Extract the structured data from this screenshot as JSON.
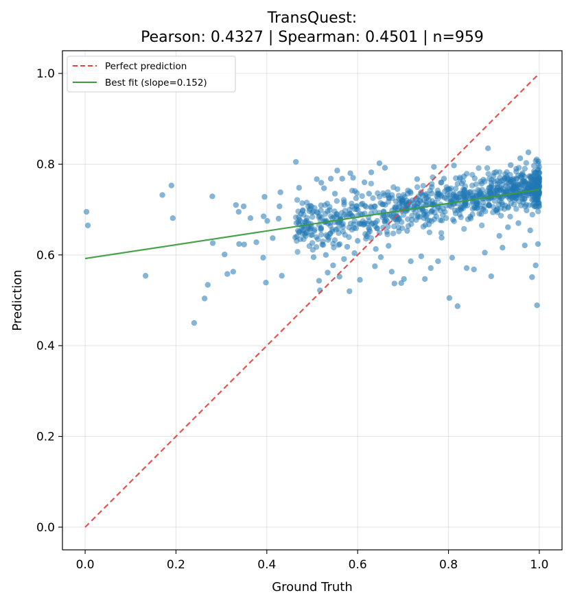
{
  "chart_data": {
    "type": "scatter",
    "title_line1": "TransQuest:",
    "title_line2": "Pearson: 0.4327 | Spearman: 0.4501 | n=959",
    "xlabel": "Ground Truth",
    "ylabel": "Prediction",
    "xlim": [
      -0.05,
      1.05
    ],
    "ylim": [
      -0.05,
      1.05
    ],
    "xticks": [
      0.0,
      0.2,
      0.4,
      0.6,
      0.8,
      1.0
    ],
    "yticks": [
      0.0,
      0.2,
      0.4,
      0.6,
      0.8,
      1.0
    ],
    "xtick_labels": [
      "0.0",
      "0.2",
      "0.4",
      "0.6",
      "0.8",
      "1.0"
    ],
    "ytick_labels": [
      "0.0",
      "0.2",
      "0.4",
      "0.6",
      "0.8",
      "1.0"
    ],
    "grid": true,
    "legend_position": "upper-left",
    "n_points": 959,
    "point_color": "#1f77b4",
    "series": [
      {
        "name": "Perfect prediction",
        "kind": "line",
        "style": "dashed",
        "color": "#e8413f",
        "x": [
          0,
          1
        ],
        "y": [
          0,
          1
        ]
      },
      {
        "name": "Best fit (slope=0.152)",
        "kind": "line",
        "style": "solid",
        "color": "#3a9a3a",
        "x": [
          0,
          1
        ],
        "y": [
          0.592,
          0.744
        ]
      }
    ],
    "points": [
      [
        0.003,
        0.695
      ],
      [
        0.006,
        0.665
      ],
      [
        0.133,
        0.554
      ],
      [
        0.17,
        0.732
      ],
      [
        0.19,
        0.753
      ],
      [
        0.193,
        0.681
      ],
      [
        0.24,
        0.45
      ],
      [
        0.263,
        0.504
      ],
      [
        0.27,
        0.534
      ],
      [
        0.28,
        0.729
      ],
      [
        0.281,
        0.626
      ],
      [
        0.307,
        0.601
      ],
      [
        0.313,
        0.558
      ],
      [
        0.326,
        0.563
      ],
      [
        0.332,
        0.71
      ],
      [
        0.338,
        0.695
      ],
      [
        0.339,
        0.624
      ],
      [
        0.349,
        0.707
      ],
      [
        0.35,
        0.623
      ],
      [
        0.364,
        0.681
      ],
      [
        0.377,
        0.628
      ],
      [
        0.392,
        0.594
      ],
      [
        0.393,
        0.685
      ],
      [
        0.395,
        0.728
      ],
      [
        0.398,
        0.539
      ],
      [
        0.401,
        0.675
      ],
      [
        0.413,
        0.637
      ],
      [
        0.426,
        0.68
      ],
      [
        0.428,
        0.707
      ],
      [
        0.43,
        0.738
      ],
      [
        0.433,
        0.554
      ],
      [
        0.464,
        0.805
      ],
      [
        0.466,
        0.641
      ],
      [
        0.471,
        0.748
      ],
      [
        0.49,
        0.66
      ],
      [
        0.498,
        0.707
      ],
      [
        0.503,
        0.595
      ],
      [
        0.51,
        0.767
      ],
      [
        0.515,
        0.543
      ],
      [
        0.517,
        0.522
      ],
      [
        0.52,
        0.759
      ],
      [
        0.524,
        0.622
      ],
      [
        0.526,
        0.747
      ],
      [
        0.53,
        0.6
      ],
      [
        0.534,
        0.561
      ],
      [
        0.541,
        0.768
      ],
      [
        0.546,
        0.577
      ],
      [
        0.55,
        0.735
      ],
      [
        0.555,
        0.786
      ],
      [
        0.558,
        0.622
      ],
      [
        0.56,
        0.552
      ],
      [
        0.566,
        0.768
      ],
      [
        0.57,
        0.591
      ],
      [
        0.577,
        0.618
      ],
      [
        0.582,
        0.52
      ],
      [
        0.584,
        0.78
      ],
      [
        0.59,
        0.77
      ],
      [
        0.593,
        0.604
      ],
      [
        0.6,
        0.631
      ],
      [
        0.605,
        0.545
      ],
      [
        0.615,
        0.76
      ],
      [
        0.62,
        0.641
      ],
      [
        0.625,
        0.735
      ],
      [
        0.63,
        0.782
      ],
      [
        0.638,
        0.575
      ],
      [
        0.64,
        0.613
      ],
      [
        0.648,
        0.802
      ],
      [
        0.651,
        0.595
      ],
      [
        0.66,
        0.792
      ],
      [
        0.668,
        0.62
      ],
      [
        0.675,
        0.563
      ],
      [
        0.681,
        0.537
      ],
      [
        0.69,
        0.682
      ],
      [
        0.696,
        0.538
      ],
      [
        0.702,
        0.547
      ],
      [
        0.709,
        0.653
      ],
      [
        0.717,
        0.586
      ],
      [
        0.723,
        0.714
      ],
      [
        0.731,
        0.767
      ],
      [
        0.74,
        0.597
      ],
      [
        0.748,
        0.547
      ],
      [
        0.752,
        0.71
      ],
      [
        0.761,
        0.571
      ],
      [
        0.768,
        0.794
      ],
      [
        0.777,
        0.586
      ],
      [
        0.785,
        0.638
      ],
      [
        0.79,
        0.768
      ],
      [
        0.8,
        0.745
      ],
      [
        0.802,
        0.505
      ],
      [
        0.808,
        0.594
      ],
      [
        0.812,
        0.797
      ],
      [
        0.82,
        0.487
      ],
      [
        0.829,
        0.704
      ],
      [
        0.834,
        0.773
      ],
      [
        0.84,
        0.571
      ],
      [
        0.848,
        0.684
      ],
      [
        0.856,
        0.568
      ],
      [
        0.862,
        0.713
      ],
      [
        0.873,
        0.757
      ],
      [
        0.88,
        0.605
      ],
      [
        0.887,
        0.835
      ],
      [
        0.894,
        0.553
      ],
      [
        0.899,
        0.774
      ],
      [
        0.906,
        0.699
      ],
      [
        0.912,
        0.642
      ],
      [
        0.919,
        0.616
      ],
      [
        0.924,
        0.768
      ],
      [
        0.931,
        0.661
      ],
      [
        0.937,
        0.798
      ],
      [
        0.944,
        0.752
      ],
      [
        0.949,
        0.731
      ],
      [
        0.954,
        0.67
      ],
      [
        0.958,
        0.813
      ],
      [
        0.963,
        0.78
      ],
      [
        0.968,
        0.621
      ],
      [
        0.972,
        0.698
      ],
      [
        0.976,
        0.826
      ],
      [
        0.98,
        0.654
      ],
      [
        0.984,
        0.551
      ],
      [
        0.988,
        0.745
      ],
      [
        0.992,
        0.577
      ],
      [
        0.995,
        0.489
      ],
      [
        0.997,
        0.624
      ],
      [
        0.999,
        0.715
      ],
      [
        1.0,
        0.781
      ],
      [
        0.998,
        0.806
      ]
    ]
  }
}
